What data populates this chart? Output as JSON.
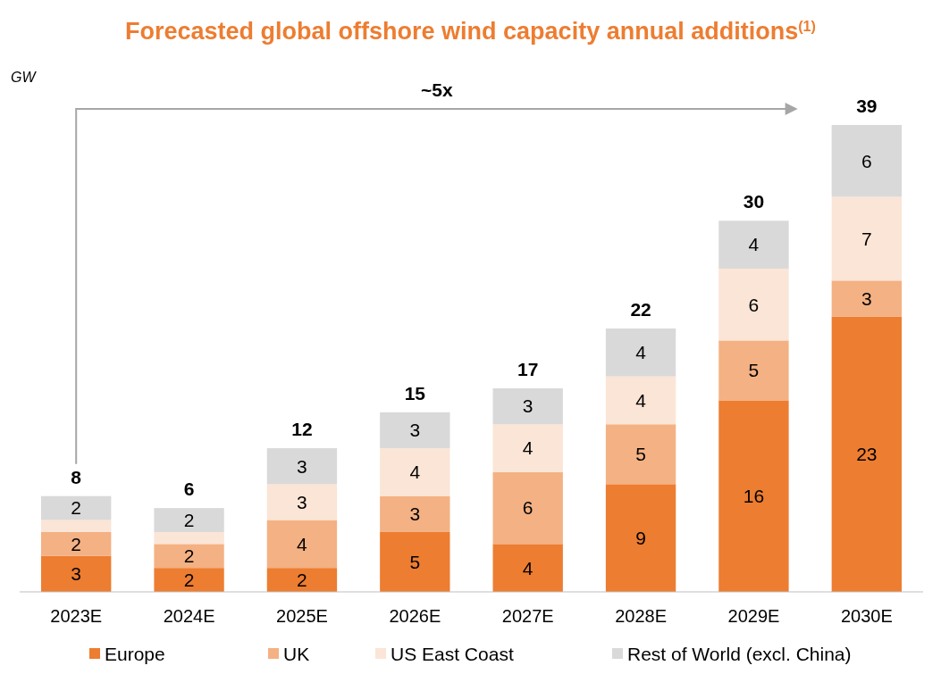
{
  "chart_data": {
    "type": "bar",
    "title": "Forecasted global offshore wind capacity annual additions$^{(1)}$",
    "ylabel": "GW",
    "stacked": true,
    "legend": "bottom",
    "categories": [
      "2023E",
      "2024E",
      "2025E",
      "2026E",
      "2027E",
      "2028E",
      "2029E",
      "2030E"
    ],
    "series": [
      {
        "name": "Europe",
        "color": "#ed7d31",
        "values": [
          3,
          2,
          2,
          5,
          4,
          9,
          16,
          23
        ],
        "value_labels": [
          "3",
          "2",
          "2",
          "5",
          "4",
          "9",
          "16",
          "23"
        ]
      },
      {
        "name": "UK",
        "color": "#f4b183",
        "values": [
          2,
          2,
          4,
          3,
          6,
          5,
          5,
          3
        ],
        "value_labels": [
          "2",
          "2",
          "4",
          "3",
          "6",
          "5",
          "5",
          "3"
        ]
      },
      {
        "name": "US East Coast",
        "color": "#fbe5d6",
        "values": [
          1,
          1,
          3,
          4,
          4,
          4,
          6,
          7
        ],
        "value_labels": [
          null,
          null,
          "3",
          "4",
          "4",
          "4",
          "6",
          "7"
        ]
      },
      {
        "name": "Rest of World (excl. China)",
        "color": "#d9d9d9",
        "values": [
          2,
          2,
          3,
          3,
          3,
          4,
          4,
          6
        ],
        "value_labels": [
          "2",
          "2",
          "3",
          "3",
          "3",
          "4",
          "4",
          "6"
        ]
      }
    ],
    "totals": [
      "8",
      "6",
      "12",
      "15",
      "17",
      "22",
      "30",
      "39"
    ],
    "annotations": [
      "~5x"
    ]
  }
}
